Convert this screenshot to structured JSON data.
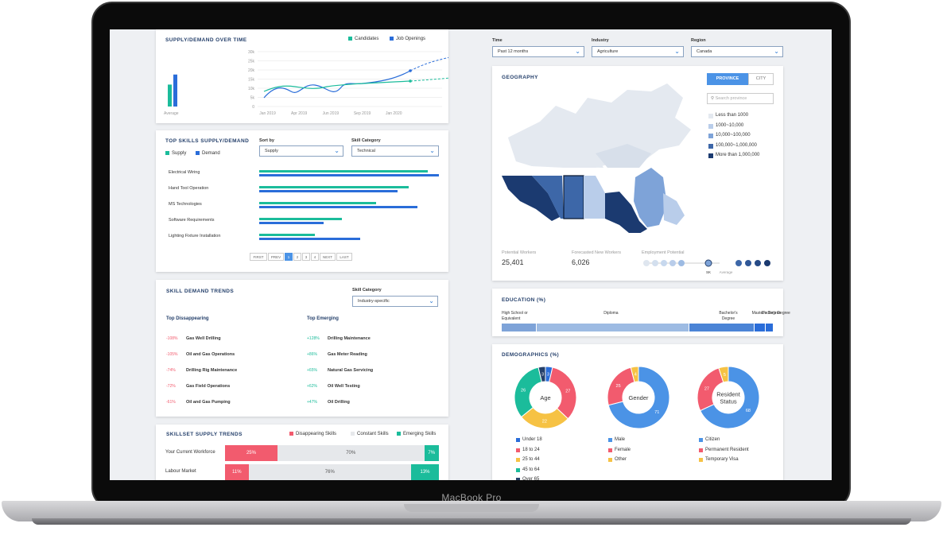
{
  "device": {
    "brand": "MacBook Pro"
  },
  "colors": {
    "teal": "#1bbc9b",
    "blue": "#2a6dd9",
    "red": "#f25b6e",
    "grey": "#e6e8eb",
    "navy": "#25406b"
  },
  "supply_demand": {
    "title": "SUPPLY/DEMAND OVER TIME",
    "legend": [
      "Candidates",
      "Job Openings"
    ],
    "avg_label": "Average",
    "y_ticks": [
      "30k",
      "25k",
      "20k",
      "15k",
      "10k",
      "5k",
      "0"
    ],
    "x_ticks": [
      "Jan 2019",
      "Apr 2019",
      "Jun 2019",
      "Sep 2019",
      "Jan 2020"
    ],
    "avg": {
      "candidates": 12000,
      "openings": 17500
    }
  },
  "top_skills": {
    "title": "TOP SKILLS SUPPLY/DEMAND",
    "legend": [
      "Supply",
      "Demand"
    ],
    "sort_label": "Sort by",
    "sort_value": "Supply",
    "cat_label": "Skill Category",
    "cat_value": "Technical",
    "items": [
      {
        "name": "Electrical Wiring",
        "supply": 0.94,
        "demand": 1.0
      },
      {
        "name": "Hand Tool Operation",
        "supply": 0.83,
        "demand": 0.77
      },
      {
        "name": "MS Technologies",
        "supply": 0.65,
        "demand": 0.88
      },
      {
        "name": "Software Requirements",
        "supply": 0.46,
        "demand": 0.36
      },
      {
        "name": "Lighting Fixture Installation",
        "supply": 0.31,
        "demand": 0.56
      }
    ],
    "pager": [
      "FIRST",
      "PREV",
      "1",
      "2",
      "3",
      "4",
      "NEXT",
      "LAST"
    ]
  },
  "skill_trends": {
    "title": "SKILL DEMAND TRENDS",
    "cat_label": "Skill Category",
    "cat_value": "Industry-specific",
    "dis_title": "Top Dissappearing",
    "emg_title": "Top Emerging",
    "disappearing": [
      {
        "pct": "-108%",
        "name": "Gas Well Drilling"
      },
      {
        "pct": "-105%",
        "name": "Oil and Gas Operations"
      },
      {
        "pct": "-74%",
        "name": "Drilling Rig Maintenance"
      },
      {
        "pct": "-72%",
        "name": "Gas Field Operations"
      },
      {
        "pct": "-61%",
        "name": "Oil and Gas Pumping"
      }
    ],
    "emerging": [
      {
        "pct": "+128%",
        "name": "Drilling Maintenance"
      },
      {
        "pct": "+86%",
        "name": "Gas Meter Reading"
      },
      {
        "pct": "+65%",
        "name": "Natural Gas Servicing"
      },
      {
        "pct": "+62%",
        "name": "Oil Well Testing"
      },
      {
        "pct": "+47%",
        "name": "Oil Drilling"
      }
    ]
  },
  "skillset": {
    "title": "SKILLSET SUPPLY TRENDS",
    "legend": [
      "Disappearing Skills",
      "Constant Skills",
      "Emerging Skills"
    ],
    "rows": [
      {
        "label": "Your Current Workforce",
        "dis": "25%",
        "con": "70%",
        "emg": "7%",
        "d": 25,
        "c": 70,
        "e": 7
      },
      {
        "label": "Labour Market",
        "dis": "11%",
        "con": "76%",
        "emg": "13%",
        "d": 11,
        "c": 76,
        "e": 13
      }
    ]
  },
  "filters": {
    "time_label": "Time",
    "time_value": "Past 12 months",
    "industry_label": "Industry",
    "industry_value": "Agriculture",
    "region_label": "Region",
    "region_value": "Canada"
  },
  "geography": {
    "title": "GEOGRAPHY",
    "tab_province": "PROVINCE",
    "tab_city": "CITY",
    "search_placeholder": "Search province",
    "legend": [
      "Less than 1000",
      "1000~10,000",
      "10,000~100,000",
      "100,000~1,000,000",
      "More than 1,000,000"
    ],
    "legend_colors": [
      "#e4e9f0",
      "#b9cdea",
      "#7ea3d8",
      "#3d67a8",
      "#1b3a70"
    ],
    "stats": [
      {
        "label": "Potential Workers",
        "value": "25,401"
      },
      {
        "label": "Forecasted New Workers",
        "value": "6,026"
      }
    ],
    "potential_label": "Employment Potential",
    "sk": "SK",
    "avg": "Average"
  },
  "education": {
    "title": "EDUCATION (%)",
    "labels": [
      "High School or Equivalent",
      "Diploma",
      "Bachelor's Degree",
      "Master's Degree",
      "Doctor's Degree"
    ],
    "shares": [
      13,
      56,
      24,
      4,
      3
    ]
  },
  "demographics": {
    "title": "DEMOGRAPHICS (%)",
    "age": {
      "label": "Age",
      "values": [
        {
          "n": "Under 18",
          "v": 3,
          "c": "#2a6dd9"
        },
        {
          "n": "18 to 24",
          "v": 27,
          "c": "#f25b6e"
        },
        {
          "n": "25 to 44",
          "v": 22,
          "c": "#f6c244"
        },
        {
          "n": "45 to 64",
          "v": 26,
          "c": "#1bbc9b"
        },
        {
          "n": "Over 65",
          "v": 3,
          "c": "#25406b"
        }
      ]
    },
    "gender": {
      "label": "Gender",
      "values": [
        {
          "n": "Male",
          "v": 71,
          "c": "#4b93e6"
        },
        {
          "n": "Female",
          "v": 25,
          "c": "#f25b6e"
        },
        {
          "n": "Other",
          "v": 4,
          "c": "#f6c244"
        }
      ]
    },
    "resident": {
      "label": "Resident Status",
      "values": [
        {
          "n": "Citizen",
          "v": 68,
          "c": "#4b93e6"
        },
        {
          "n": "Permanent Resident",
          "v": 27,
          "c": "#f25b6e"
        },
        {
          "n": "Temporary Visa",
          "v": 5,
          "c": "#f6c244"
        }
      ]
    }
  }
}
